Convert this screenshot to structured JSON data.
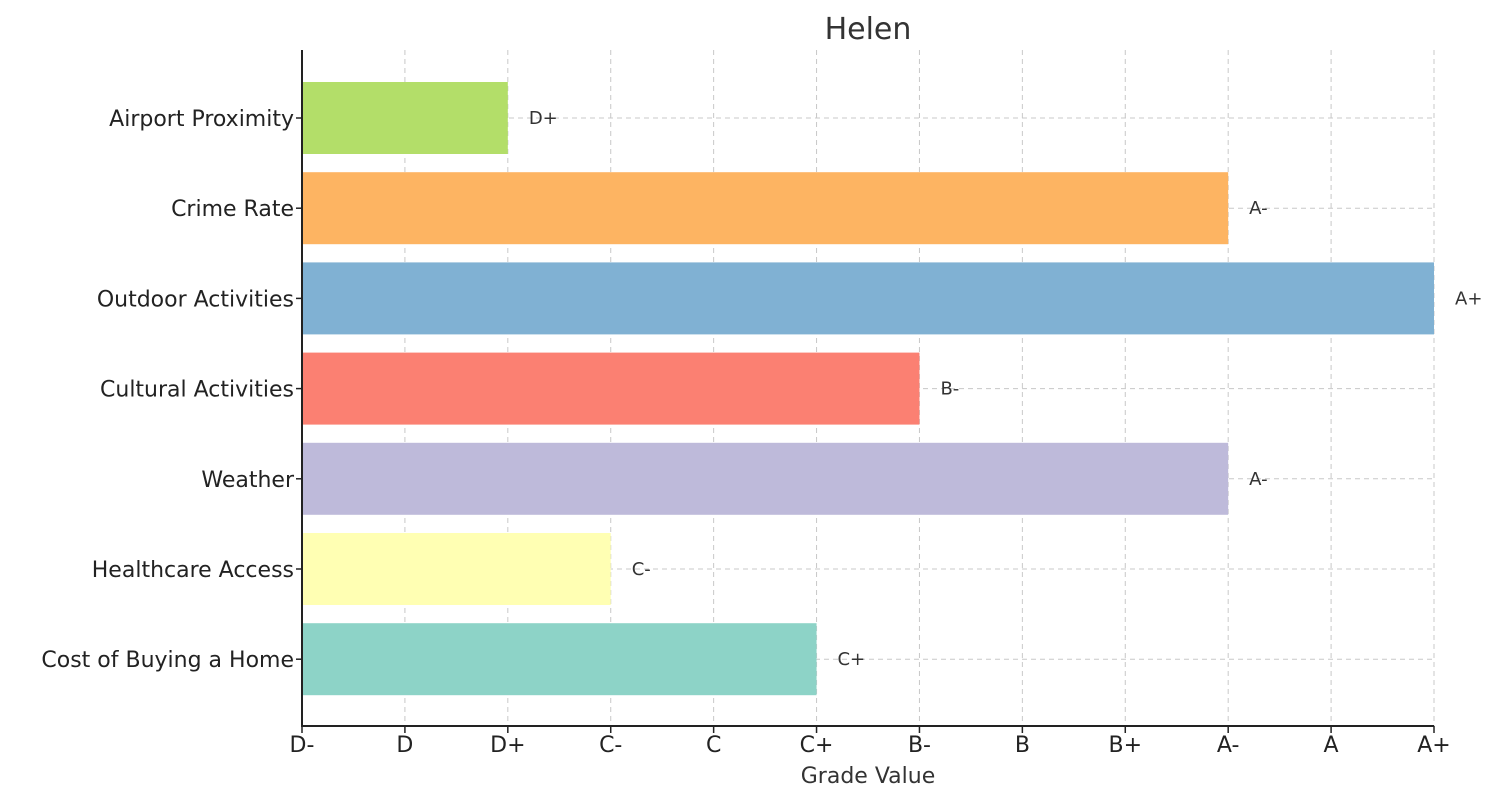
{
  "chart_data": {
    "type": "bar",
    "orientation": "horizontal",
    "title": "Helen",
    "xlabel": "Grade Value",
    "ylabel": "",
    "grade_scale": [
      "D-",
      "D",
      "D+",
      "C-",
      "C",
      "C+",
      "B-",
      "B",
      "B+",
      "A-",
      "A",
      "A+"
    ],
    "grid": true,
    "bars": [
      {
        "category": "Airport Proximity",
        "grade": "D+",
        "value": 2,
        "color": "#b3de69"
      },
      {
        "category": "Crime Rate",
        "grade": "A-",
        "value": 9,
        "color": "#fdb462"
      },
      {
        "category": "Outdoor Activities",
        "grade": "A+",
        "value": 11,
        "color": "#80b1d3"
      },
      {
        "category": "Cultural Activities",
        "grade": "B-",
        "value": 6,
        "color": "#fb8072"
      },
      {
        "category": "Weather",
        "grade": "A-",
        "value": 9,
        "color": "#bebada"
      },
      {
        "category": "Healthcare Access",
        "grade": "C-",
        "value": 3,
        "color": "#ffffb3"
      },
      {
        "category": "Cost of Buying a Home",
        "grade": "C+",
        "value": 5,
        "color": "#8dd3c7"
      }
    ]
  }
}
